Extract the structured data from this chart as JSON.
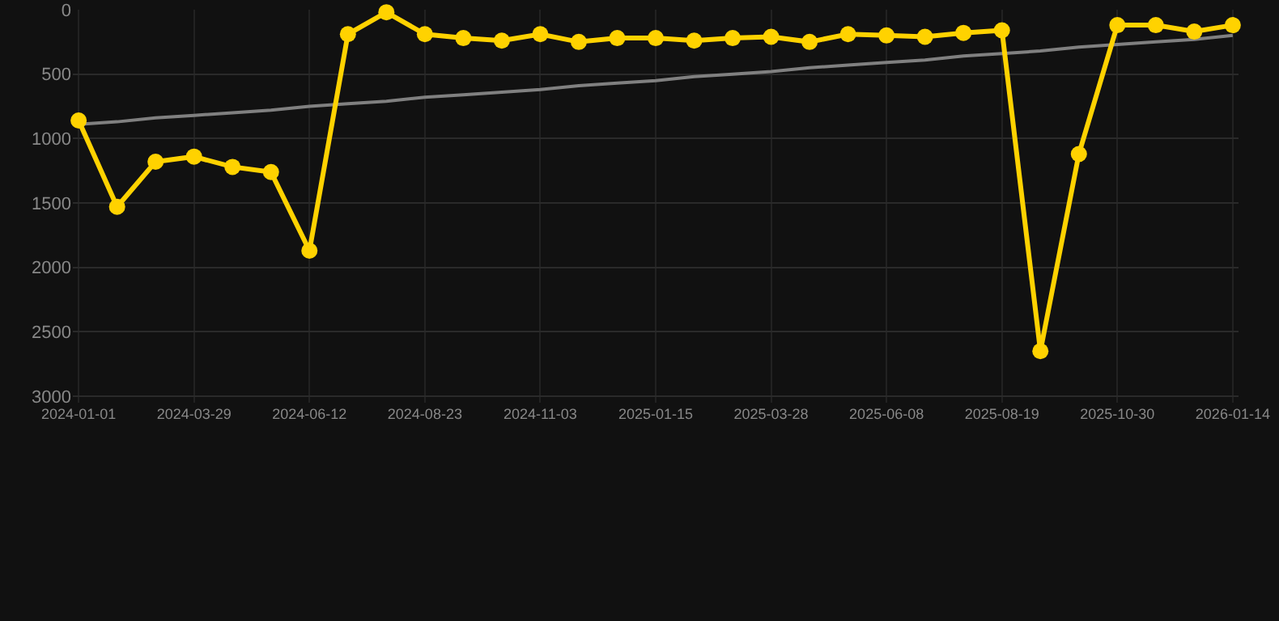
{
  "chart_data": {
    "type": "line",
    "categories": [
      "2024-01-01",
      null,
      null,
      "2024-03-29",
      null,
      null,
      "2024-06-12",
      null,
      null,
      "2024-08-23",
      null,
      null,
      "2024-11-03",
      null,
      null,
      "2025-01-15",
      null,
      null,
      "2025-03-28",
      null,
      null,
      "2025-06-08",
      null,
      null,
      "2025-08-19",
      null,
      null,
      "2025-10-30",
      null,
      null,
      "2026-01-14"
    ],
    "series": [
      {
        "color": "#ffd200",
        "marker": "circle",
        "values": [
          860,
          1530,
          1180,
          1140,
          1220,
          1260,
          1870,
          190,
          20,
          190,
          220,
          240,
          190,
          250,
          220,
          220,
          240,
          220,
          210,
          250,
          190,
          200,
          210,
          180,
          160,
          2650,
          1120,
          120,
          120,
          170,
          120
        ]
      },
      {
        "color": "#808080",
        "marker": "none",
        "values": [
          890,
          870,
          840,
          820,
          800,
          780,
          750,
          730,
          710,
          680,
          660,
          640,
          620,
          590,
          570,
          550,
          520,
          500,
          480,
          450,
          430,
          410,
          390,
          360,
          340,
          320,
          290,
          270,
          250,
          230,
          200
        ]
      }
    ],
    "ylim": [
      3050,
      0
    ],
    "yticks": [
      0,
      500,
      1000,
      1500,
      2000,
      2500,
      3000
    ],
    "grid": true,
    "line_style": "solid"
  }
}
